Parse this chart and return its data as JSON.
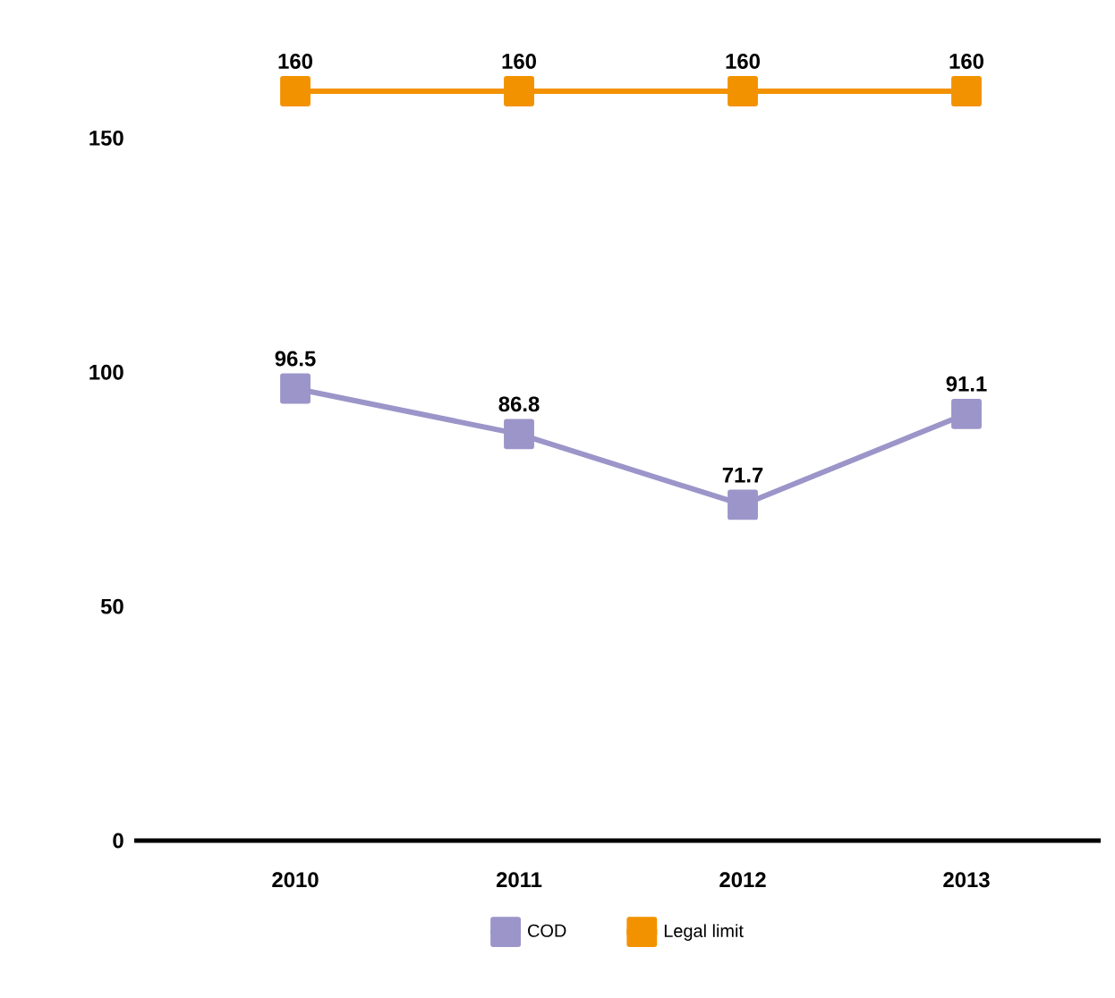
{
  "chart_data": {
    "type": "line",
    "categories": [
      "2010",
      "2011",
      "2012",
      "2013"
    ],
    "series": [
      {
        "name": "COD",
        "color": "#9b95c9",
        "values": [
          96.5,
          86.8,
          71.7,
          91.1
        ]
      },
      {
        "name": "Legal limit",
        "color": "#f39200",
        "values": [
          160,
          160,
          160,
          160
        ]
      }
    ],
    "ylim": [
      0,
      160
    ],
    "yticks": [
      0,
      50,
      100,
      150
    ],
    "data_labels": true,
    "marker": "square",
    "legend": "bottom",
    "grid": false
  }
}
